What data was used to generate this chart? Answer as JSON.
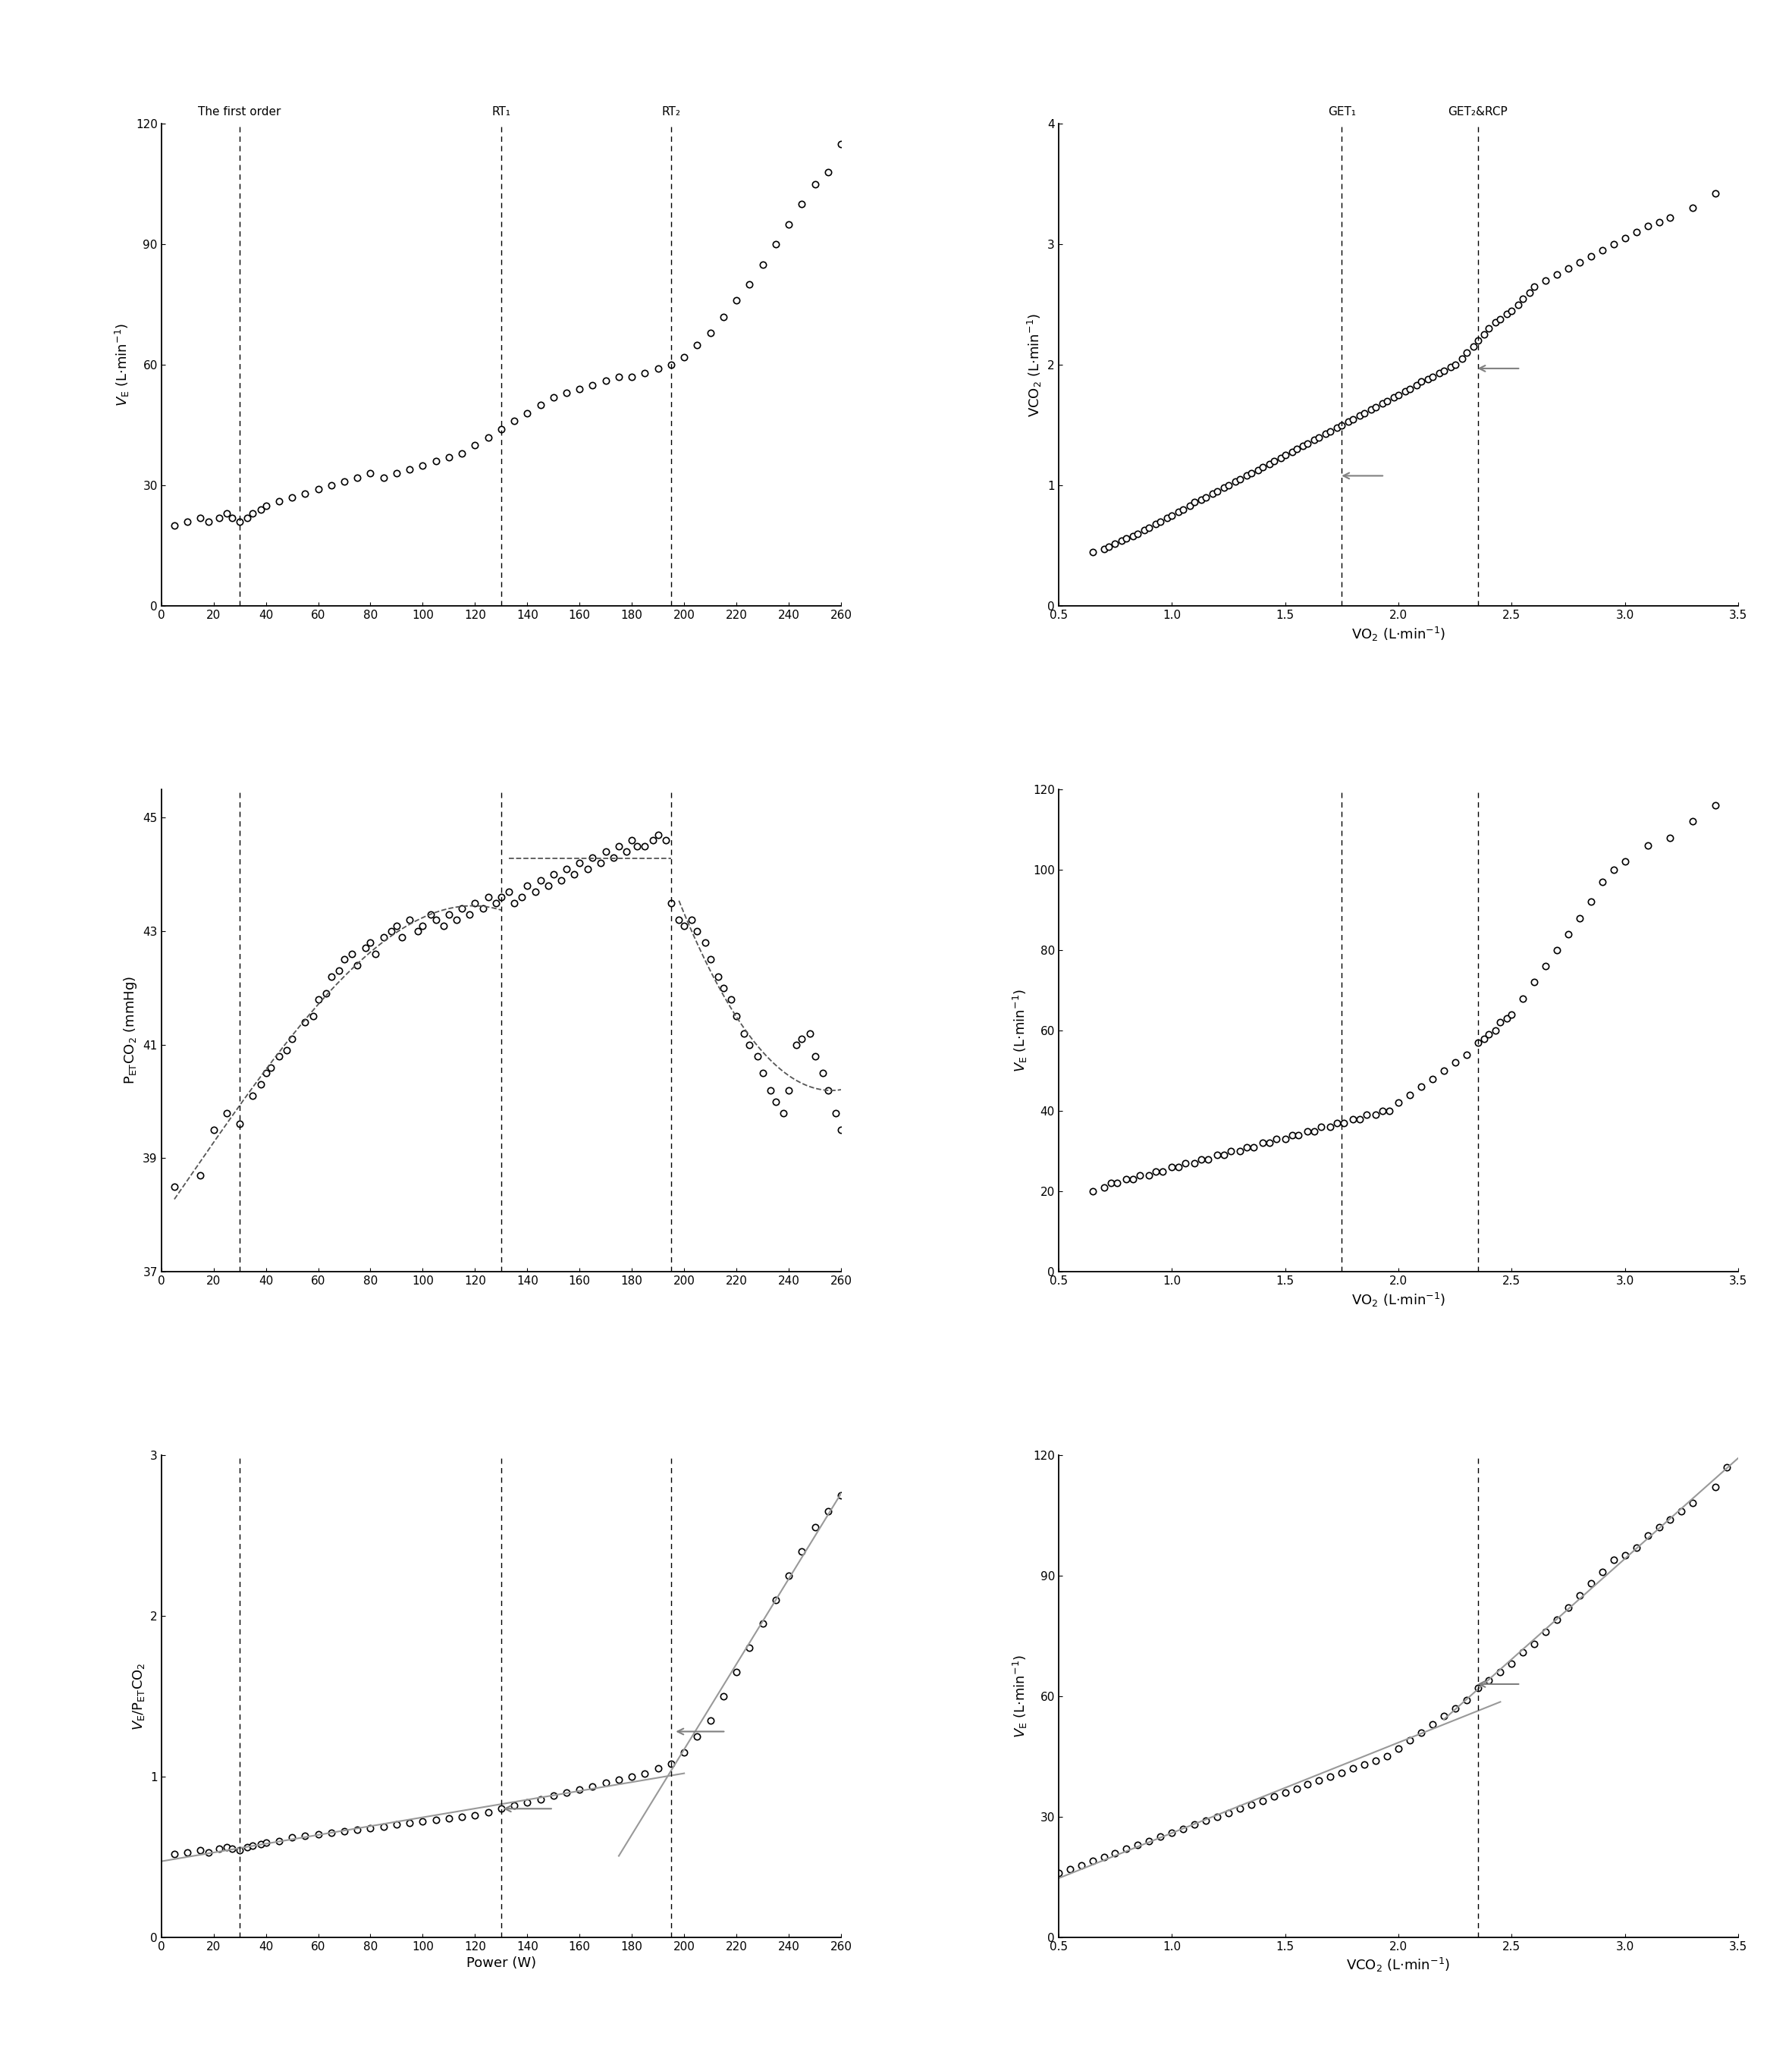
{
  "left_vlines": [
    30,
    130,
    195
  ],
  "left_vline_labels": [
    "The first order",
    "RT₁",
    "RT₂"
  ],
  "right_vlines": [
    1.75,
    2.35
  ],
  "right_vline_labels": [
    "GET₁",
    "GET₂&RCP"
  ],
  "right_vline_panel6": [
    2.35
  ],
  "p1_power": [
    5,
    10,
    15,
    18,
    22,
    25,
    27,
    30,
    33,
    35,
    38,
    40,
    45,
    50,
    55,
    60,
    65,
    70,
    75,
    80,
    85,
    90,
    95,
    100,
    105,
    110,
    115,
    120,
    125,
    130,
    135,
    140,
    145,
    150,
    155,
    160,
    165,
    170,
    175,
    180,
    185,
    190,
    195,
    200,
    205,
    210,
    215,
    220,
    225,
    230,
    235,
    240,
    245,
    250,
    255,
    260
  ],
  "p1_ve": [
    20,
    21,
    22,
    21,
    22,
    23,
    22,
    21,
    22,
    23,
    24,
    25,
    26,
    27,
    28,
    29,
    30,
    31,
    32,
    33,
    32,
    33,
    34,
    35,
    36,
    37,
    38,
    40,
    42,
    44,
    46,
    48,
    50,
    52,
    53,
    54,
    55,
    56,
    57,
    57,
    58,
    59,
    60,
    62,
    65,
    68,
    72,
    76,
    80,
    85,
    90,
    95,
    100,
    105,
    108,
    115
  ],
  "p3_power": [
    5,
    15,
    20,
    25,
    30,
    35,
    38,
    40,
    42,
    45,
    48,
    50,
    55,
    58,
    60,
    63,
    65,
    68,
    70,
    73,
    75,
    78,
    80,
    82,
    85,
    88,
    90,
    92,
    95,
    98,
    100,
    103,
    105,
    108,
    110,
    113,
    115,
    118,
    120,
    123,
    125,
    128,
    130,
    133,
    135,
    138,
    140,
    143,
    145,
    148,
    150,
    153,
    155,
    158,
    160,
    163,
    165,
    168,
    170,
    173,
    175,
    178,
    180,
    182,
    185,
    188,
    190,
    193,
    195,
    198,
    200,
    203,
    205,
    208,
    210,
    213,
    215,
    218,
    220,
    223,
    225,
    228,
    230,
    233,
    235,
    238,
    240,
    243,
    245,
    248,
    250,
    253,
    255,
    258,
    260
  ],
  "p3_petco2": [
    38.5,
    38.7,
    39.5,
    39.8,
    39.6,
    40.1,
    40.3,
    40.5,
    40.6,
    40.8,
    40.9,
    41.1,
    41.4,
    41.5,
    41.8,
    41.9,
    42.2,
    42.3,
    42.5,
    42.6,
    42.4,
    42.7,
    42.8,
    42.6,
    42.9,
    43.0,
    43.1,
    42.9,
    43.2,
    43.0,
    43.1,
    43.3,
    43.2,
    43.1,
    43.3,
    43.2,
    43.4,
    43.3,
    43.5,
    43.4,
    43.6,
    43.5,
    43.6,
    43.7,
    43.5,
    43.6,
    43.8,
    43.7,
    43.9,
    43.8,
    44.0,
    43.9,
    44.1,
    44.0,
    44.2,
    44.1,
    44.3,
    44.2,
    44.4,
    44.3,
    44.5,
    44.4,
    44.6,
    44.5,
    44.5,
    44.6,
    44.7,
    44.6,
    43.5,
    43.2,
    43.1,
    43.2,
    43.0,
    42.8,
    42.5,
    42.2,
    42.0,
    41.8,
    41.5,
    41.2,
    41.0,
    40.8,
    40.5,
    40.2,
    40.0,
    39.8,
    40.2,
    41.0,
    41.1,
    41.2,
    40.8,
    40.5,
    40.2,
    39.8,
    39.5
  ],
  "p5_power": [
    5,
    10,
    15,
    18,
    22,
    25,
    27,
    30,
    33,
    35,
    38,
    40,
    45,
    50,
    55,
    60,
    65,
    70,
    75,
    80,
    85,
    90,
    95,
    100,
    105,
    110,
    115,
    120,
    125,
    130,
    135,
    140,
    145,
    150,
    155,
    160,
    165,
    170,
    175,
    180,
    185,
    190,
    195,
    200,
    205,
    210,
    215,
    220,
    225,
    230,
    235,
    240,
    245,
    250,
    255,
    260
  ],
  "p5_ve_petco2": [
    0.52,
    0.53,
    0.54,
    0.53,
    0.55,
    0.56,
    0.55,
    0.54,
    0.56,
    0.57,
    0.58,
    0.59,
    0.6,
    0.62,
    0.63,
    0.64,
    0.65,
    0.66,
    0.67,
    0.68,
    0.69,
    0.7,
    0.71,
    0.72,
    0.73,
    0.74,
    0.75,
    0.76,
    0.78,
    0.8,
    0.82,
    0.84,
    0.86,
    0.88,
    0.9,
    0.92,
    0.94,
    0.96,
    0.98,
    1.0,
    1.02,
    1.05,
    1.08,
    1.15,
    1.25,
    1.35,
    1.5,
    1.65,
    1.8,
    1.95,
    2.1,
    2.25,
    2.4,
    2.55,
    2.65,
    2.75
  ],
  "p2_vo2": [
    0.65,
    0.7,
    0.72,
    0.75,
    0.78,
    0.8,
    0.83,
    0.85,
    0.88,
    0.9,
    0.93,
    0.95,
    0.98,
    1.0,
    1.03,
    1.05,
    1.08,
    1.1,
    1.13,
    1.15,
    1.18,
    1.2,
    1.23,
    1.25,
    1.28,
    1.3,
    1.33,
    1.35,
    1.38,
    1.4,
    1.43,
    1.45,
    1.48,
    1.5,
    1.53,
    1.55,
    1.58,
    1.6,
    1.63,
    1.65,
    1.68,
    1.7,
    1.73,
    1.75,
    1.78,
    1.8,
    1.83,
    1.85,
    1.88,
    1.9,
    1.93,
    1.95,
    1.98,
    2.0,
    2.03,
    2.05,
    2.08,
    2.1,
    2.13,
    2.15,
    2.18,
    2.2,
    2.23,
    2.25,
    2.28,
    2.3,
    2.33,
    2.35,
    2.38,
    2.4,
    2.43,
    2.45,
    2.48,
    2.5,
    2.53,
    2.55,
    2.58,
    2.6,
    2.65,
    2.7,
    2.75,
    2.8,
    2.85,
    2.9,
    2.95,
    3.0,
    3.05,
    3.1,
    3.15,
    3.2,
    3.3,
    3.4
  ],
  "p2_vco2": [
    0.45,
    0.47,
    0.49,
    0.52,
    0.54,
    0.56,
    0.58,
    0.6,
    0.63,
    0.65,
    0.68,
    0.7,
    0.73,
    0.75,
    0.78,
    0.8,
    0.83,
    0.86,
    0.88,
    0.9,
    0.93,
    0.95,
    0.98,
    1.0,
    1.03,
    1.05,
    1.08,
    1.1,
    1.13,
    1.15,
    1.18,
    1.2,
    1.23,
    1.25,
    1.28,
    1.3,
    1.33,
    1.35,
    1.38,
    1.4,
    1.43,
    1.45,
    1.48,
    1.5,
    1.53,
    1.55,
    1.58,
    1.6,
    1.63,
    1.65,
    1.68,
    1.7,
    1.73,
    1.75,
    1.78,
    1.8,
    1.83,
    1.86,
    1.88,
    1.9,
    1.93,
    1.95,
    1.98,
    2.0,
    2.05,
    2.1,
    2.15,
    2.2,
    2.25,
    2.3,
    2.35,
    2.38,
    2.42,
    2.45,
    2.5,
    2.55,
    2.6,
    2.65,
    2.7,
    2.75,
    2.8,
    2.85,
    2.9,
    2.95,
    3.0,
    3.05,
    3.1,
    3.15,
    3.18,
    3.22,
    3.3,
    3.42
  ],
  "p4_vo2": [
    0.65,
    0.7,
    0.73,
    0.76,
    0.8,
    0.83,
    0.86,
    0.9,
    0.93,
    0.96,
    1.0,
    1.03,
    1.06,
    1.1,
    1.13,
    1.16,
    1.2,
    1.23,
    1.26,
    1.3,
    1.33,
    1.36,
    1.4,
    1.43,
    1.46,
    1.5,
    1.53,
    1.56,
    1.6,
    1.63,
    1.66,
    1.7,
    1.73,
    1.76,
    1.8,
    1.83,
    1.86,
    1.9,
    1.93,
    1.96,
    2.0,
    2.05,
    2.1,
    2.15,
    2.2,
    2.25,
    2.3,
    2.35,
    2.38,
    2.4,
    2.43,
    2.45,
    2.48,
    2.5,
    2.55,
    2.6,
    2.65,
    2.7,
    2.75,
    2.8,
    2.85,
    2.9,
    2.95,
    3.0,
    3.1,
    3.2,
    3.3,
    3.4
  ],
  "p4_ve": [
    20,
    21,
    22,
    22,
    23,
    23,
    24,
    24,
    25,
    25,
    26,
    26,
    27,
    27,
    28,
    28,
    29,
    29,
    30,
    30,
    31,
    31,
    32,
    32,
    33,
    33,
    34,
    34,
    35,
    35,
    36,
    36,
    37,
    37,
    38,
    38,
    39,
    39,
    40,
    40,
    42,
    44,
    46,
    48,
    50,
    52,
    54,
    57,
    58,
    59,
    60,
    62,
    63,
    64,
    68,
    72,
    76,
    80,
    84,
    88,
    92,
    97,
    100,
    102,
    106,
    108,
    112,
    116
  ],
  "p6_vco2": [
    0.45,
    0.5,
    0.55,
    0.6,
    0.65,
    0.7,
    0.75,
    0.8,
    0.85,
    0.9,
    0.95,
    1.0,
    1.05,
    1.1,
    1.15,
    1.2,
    1.25,
    1.3,
    1.35,
    1.4,
    1.45,
    1.5,
    1.55,
    1.6,
    1.65,
    1.7,
    1.75,
    1.8,
    1.85,
    1.9,
    1.95,
    2.0,
    2.05,
    2.1,
    2.15,
    2.2,
    2.25,
    2.3,
    2.35,
    2.4,
    2.45,
    2.5,
    2.55,
    2.6,
    2.65,
    2.7,
    2.75,
    2.8,
    2.85,
    2.9,
    2.95,
    3.0,
    3.05,
    3.1,
    3.15,
    3.2,
    3.25,
    3.3,
    3.4,
    3.45
  ],
  "p6_ve": [
    15,
    16,
    17,
    18,
    19,
    20,
    21,
    22,
    23,
    24,
    25,
    26,
    27,
    28,
    29,
    30,
    31,
    32,
    33,
    34,
    35,
    36,
    37,
    38,
    39,
    40,
    41,
    42,
    43,
    44,
    45,
    47,
    49,
    51,
    53,
    55,
    57,
    59,
    62,
    64,
    66,
    68,
    71,
    73,
    76,
    79,
    82,
    85,
    88,
    91,
    94,
    95,
    97,
    100,
    102,
    104,
    106,
    108,
    112,
    117
  ],
  "ms": 6,
  "mew": 1.2,
  "gray_line": "#999999",
  "dashed_color": "#555555",
  "lw_dashed": 1.3
}
